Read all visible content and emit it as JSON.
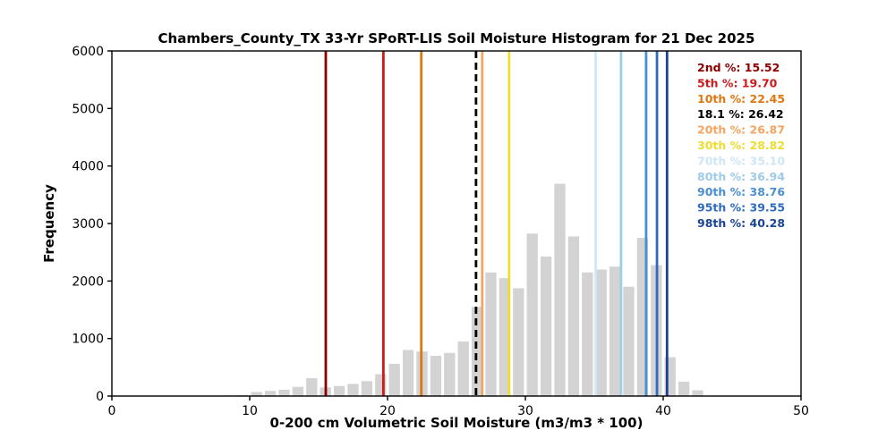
{
  "chart_data": {
    "type": "bar",
    "title": "Chambers_County_TX 33-Yr SPoRT-LIS Soil Moisture Histogram for 21 Dec 2025",
    "xlabel": "0-200 cm Volumetric Soil Moisture (m3/m3 * 100)",
    "ylabel": "Frequency",
    "xlim": [
      0,
      50
    ],
    "ylim": [
      0,
      6000
    ],
    "x_ticks": [
      0,
      10,
      20,
      30,
      40,
      50
    ],
    "y_ticks": [
      0,
      1000,
      2000,
      3000,
      4000,
      5000,
      6000
    ],
    "grid": false,
    "bar_color": "#d3d3d3",
    "bin_width": 1,
    "bar_centers": [
      8.5,
      9.5,
      10.5,
      11.5,
      12.5,
      13.5,
      14.5,
      15.5,
      16.5,
      17.5,
      18.5,
      19.5,
      20.5,
      21.5,
      22.5,
      23.5,
      24.5,
      25.5,
      26.5,
      27.5,
      28.5,
      29.5,
      30.5,
      31.5,
      32.5,
      33.5,
      34.5,
      35.5,
      36.5,
      37.5,
      38.5,
      39.5,
      40.5,
      41.5,
      42.5
    ],
    "values": [
      10,
      20,
      70,
      90,
      110,
      160,
      310,
      150,
      175,
      210,
      260,
      380,
      560,
      800,
      775,
      700,
      750,
      950,
      1550,
      2150,
      2050,
      1875,
      2825,
      2425,
      3690,
      2775,
      2150,
      2200,
      2250,
      1900,
      2750,
      2275,
      675,
      250,
      100
    ],
    "legend_position": "top-right",
    "percentile_lines": [
      {
        "label": "2nd %",
        "value": 15.52,
        "value_label": "15.52",
        "color": "#8b0000",
        "style": "solid"
      },
      {
        "label": "5th %",
        "value": 19.7,
        "value_label": "19.70",
        "color": "#cc1a1a",
        "style": "solid"
      },
      {
        "label": "10th %",
        "value": 22.45,
        "value_label": "22.45",
        "color": "#dd7711",
        "style": "solid"
      },
      {
        "label": "18.1 %",
        "value": 26.42,
        "value_label": "26.42",
        "color": "#000000",
        "style": "dashed"
      },
      {
        "label": "20th %",
        "value": 26.87,
        "value_label": "26.87",
        "color": "#f4a460",
        "style": "solid"
      },
      {
        "label": "30th %",
        "value": 28.82,
        "value_label": "28.82",
        "color": "#eedd30",
        "style": "solid"
      },
      {
        "label": "70th %",
        "value": 35.1,
        "value_label": "35.10",
        "color": "#cfe6f7",
        "style": "solid"
      },
      {
        "label": "80th %",
        "value": 36.94,
        "value_label": "36.94",
        "color": "#9fcbe8",
        "style": "solid"
      },
      {
        "label": "90th %",
        "value": 38.76,
        "value_label": "38.76",
        "color": "#4a8fd2",
        "style": "solid"
      },
      {
        "label": "95th %",
        "value": 39.55,
        "value_label": "39.55",
        "color": "#2f6bbf",
        "style": "solid"
      },
      {
        "label": "98th %",
        "value": 40.28,
        "value_label": "40.28",
        "color": "#1b4494",
        "style": "solid"
      }
    ]
  }
}
